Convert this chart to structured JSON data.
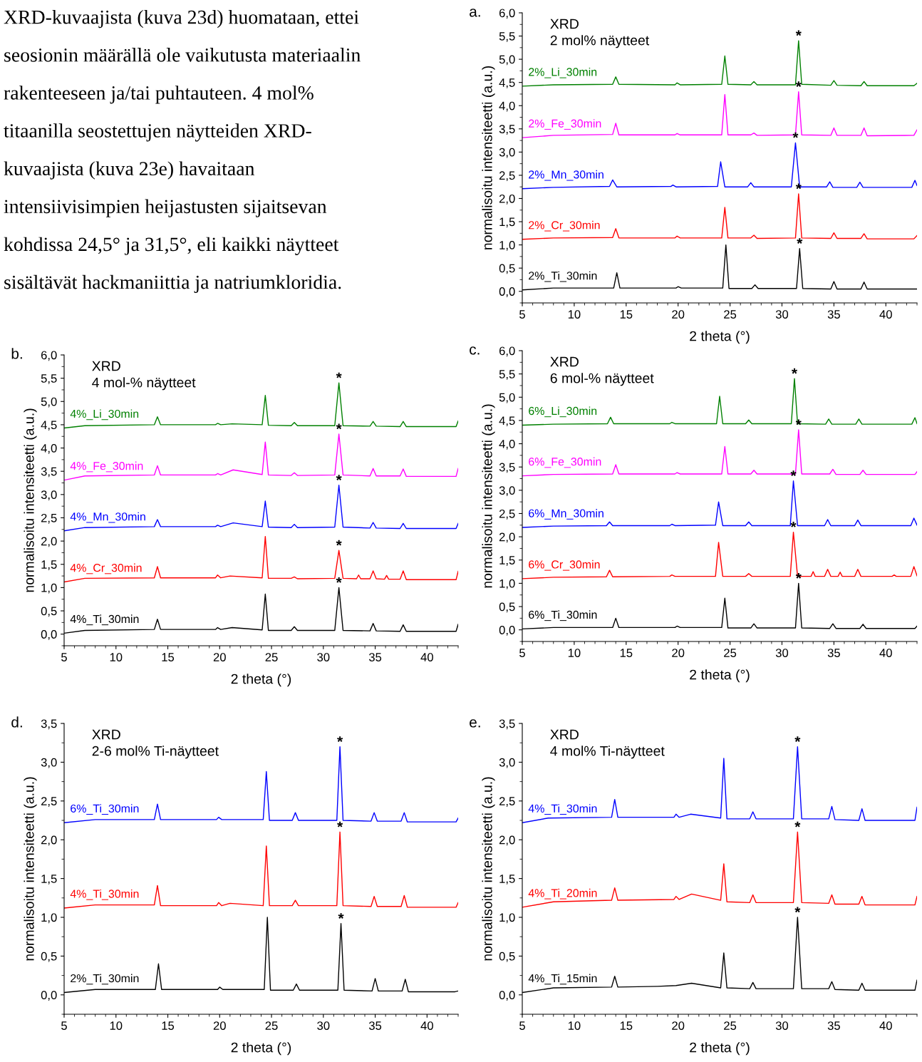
{
  "chart_data": [
    {
      "type": "other",
      "annotations": [
        "XRD-kuvaajista (kuva 23d) huomataan, ettei",
        "seosionin määrällä ole vaikutusta materiaalin",
        "rakenteeseen ja/tai puhtauteen. 4 mol%",
        "titaanilla seostettujen näytteiden XRD-",
        "kuvaajista (kuva 23e) havaitaan",
        "intensiivisimpien heijastusten sijaitsevan",
        "kohdissa 24,5° ja 31,5°, eli kaikki näytteet",
        "sisältävät hackmaniittia ja natriumkloridia."
      ]
    },
    {
      "type": "line",
      "title": "a.",
      "subtitle": "XRD\n2 mol% näytteet",
      "xlabel": "2 theta (°)",
      "ylabel": "normalisoitu intensiteetti (a.u.)",
      "xlim": [
        5,
        43
      ],
      "ylim": [
        -0.25,
        6.0
      ],
      "xticks": [
        5,
        10,
        15,
        20,
        25,
        30,
        35,
        40
      ],
      "yticks": [
        {
          "value": 0,
          "label": "0,0"
        },
        {
          "value": 0.5,
          "label": "0,5"
        },
        {
          "value": 1,
          "label": "1,0"
        },
        {
          "value": 1.5,
          "label": "1,5"
        },
        {
          "value": 2,
          "label": "2,0"
        },
        {
          "value": 2.5,
          "label": "2,5"
        },
        {
          "value": 3,
          "label": "3,0"
        },
        {
          "value": 3.5,
          "label": "3,5"
        },
        {
          "value": 4,
          "label": "4,0"
        },
        {
          "value": 4.5,
          "label": "4,5"
        },
        {
          "value": 5,
          "label": "5,0"
        },
        {
          "value": 5.5,
          "label": "5,5"
        },
        {
          "value": 6,
          "label": "6,0"
        }
      ],
      "grid": false,
      "legend": false,
      "marker": "none",
      "line_style": "solid",
      "series": [
        {
          "name": "2%_Li_30min",
          "color": "#008000",
          "x": [
            5,
            8,
            13.7,
            14.0,
            14.3,
            19.7,
            19.9,
            20.2,
            24.2,
            24.5,
            24.8,
            27.0,
            27.3,
            27.6,
            31.3,
            31.6,
            31.9,
            34.7,
            35.0,
            35.3,
            37.6,
            37.9,
            38.2,
            42.7,
            43
          ],
          "values": [
            4.42,
            4.45,
            4.46,
            4.62,
            4.46,
            4.45,
            4.49,
            4.45,
            4.46,
            5.07,
            4.46,
            4.45,
            4.52,
            4.45,
            4.45,
            5.4,
            4.46,
            4.44,
            4.54,
            4.44,
            4.43,
            4.52,
            4.43,
            4.43,
            4.48
          ]
        },
        {
          "name": "2%_Fe_30min",
          "color": "#ff00ff",
          "x": [
            5,
            8,
            13.7,
            14.0,
            14.3,
            19.7,
            19.9,
            20.2,
            24.2,
            24.5,
            24.8,
            27.0,
            27.3,
            27.6,
            31.3,
            31.6,
            31.9,
            34.7,
            35.0,
            35.3,
            37.6,
            37.9,
            38.2,
            42.7,
            43
          ],
          "values": [
            3.31,
            3.36,
            3.38,
            3.62,
            3.37,
            3.37,
            3.4,
            3.37,
            3.37,
            4.24,
            3.37,
            3.37,
            3.41,
            3.36,
            3.37,
            4.3,
            3.37,
            3.36,
            3.52,
            3.36,
            3.36,
            3.52,
            3.35,
            3.36,
            3.48
          ]
        },
        {
          "name": "2%_Mn_30min",
          "color": "#0000ff",
          "x": [
            5,
            8,
            13.4,
            13.7,
            14.1,
            19.3,
            19.5,
            19.8,
            23.8,
            24.1,
            24.5,
            26.7,
            27.0,
            27.3,
            30.9,
            31.3,
            31.7,
            34.3,
            34.6,
            34.9,
            37.2,
            37.5,
            37.8,
            42.5,
            42.8,
            43
          ],
          "values": [
            2.21,
            2.24,
            2.26,
            2.4,
            2.25,
            2.26,
            2.29,
            2.25,
            2.26,
            2.79,
            2.25,
            2.25,
            2.34,
            2.25,
            2.25,
            3.2,
            2.25,
            2.25,
            2.36,
            2.24,
            2.24,
            2.35,
            2.24,
            2.24,
            2.39,
            2.28
          ]
        },
        {
          "name": "2%_Cr_30min",
          "color": "#ff0000",
          "x": [
            5,
            8,
            13.7,
            14.0,
            14.3,
            19.7,
            19.9,
            20.2,
            24.2,
            24.5,
            24.8,
            27.0,
            27.3,
            27.6,
            31.3,
            31.6,
            31.9,
            34.7,
            35.0,
            35.3,
            37.6,
            37.9,
            38.2,
            42.7,
            43
          ],
          "values": [
            1.12,
            1.15,
            1.16,
            1.35,
            1.15,
            1.15,
            1.19,
            1.15,
            1.15,
            1.81,
            1.15,
            1.15,
            1.21,
            1.14,
            1.15,
            2.1,
            1.15,
            1.14,
            1.26,
            1.14,
            1.14,
            1.24,
            1.13,
            1.13,
            1.2
          ]
        },
        {
          "name": "2%_Ti_30min",
          "color": "#000000",
          "x": [
            5,
            8,
            13.8,
            14.1,
            14.4,
            19.8,
            20.0,
            20.3,
            24.3,
            24.6,
            24.9,
            27.1,
            27.4,
            27.7,
            31.4,
            31.7,
            32.0,
            34.7,
            35.0,
            35.3,
            37.6,
            37.9,
            38.2,
            42.7,
            43
          ],
          "values": [
            0.03,
            0.07,
            0.07,
            0.4,
            0.07,
            0.07,
            0.1,
            0.07,
            0.07,
            1.0,
            0.06,
            0.06,
            0.14,
            0.06,
            0.06,
            0.92,
            0.06,
            0.05,
            0.21,
            0.05,
            0.05,
            0.2,
            0.05,
            0.05,
            0.05
          ]
        }
      ],
      "annotations": [
        {
          "text": "*",
          "x": 31.6,
          "y": 5.4
        },
        {
          "text": "*",
          "x": 31.6,
          "y": 4.3
        },
        {
          "text": "*",
          "x": 31.3,
          "y": 3.2
        },
        {
          "text": "*",
          "x": 31.6,
          "y": 2.1
        },
        {
          "text": "*",
          "x": 31.7,
          "y": 0.92
        }
      ]
    },
    {
      "type": "line",
      "title": "b.",
      "subtitle": "XRD\n4 mol-% näytteet",
      "xlabel": "2 theta (°)",
      "ylabel": "normalisoitu intensiteetti (a.u.)",
      "xlim": [
        5,
        43
      ],
      "ylim": [
        -0.25,
        6.0
      ],
      "xticks": [
        5,
        10,
        15,
        20,
        25,
        30,
        35,
        40
      ],
      "yticks": [
        {
          "value": 0,
          "label": "0,0"
        },
        {
          "value": 0.5,
          "label": "0,5"
        },
        {
          "value": 1,
          "label": "1,0"
        },
        {
          "value": 1.5,
          "label": "1,5"
        },
        {
          "value": 2,
          "label": "2,0"
        },
        {
          "value": 2.5,
          "label": "2,5"
        },
        {
          "value": 3,
          "label": "3,0"
        },
        {
          "value": 3.5,
          "label": "3,5"
        },
        {
          "value": 4,
          "label": "4,0"
        },
        {
          "value": 4.5,
          "label": "4,5"
        },
        {
          "value": 5,
          "label": "5,0"
        },
        {
          "value": 5.5,
          "label": "5,5"
        },
        {
          "value": 6,
          "label": "6,0"
        }
      ],
      "grid": false,
      "legend": false,
      "marker": "none",
      "line_style": "solid",
      "series": [
        {
          "name": "4%_Li_30min",
          "color": "#008000",
          "x": [
            5,
            7,
            13.7,
            14.0,
            14.3,
            19.6,
            19.8,
            20.1,
            21.2,
            24.1,
            24.4,
            24.7,
            26.9,
            27.2,
            27.5,
            31.1,
            31.5,
            31.9,
            34.5,
            34.8,
            35.1,
            37.4,
            37.7,
            38.0,
            42.8,
            43
          ],
          "values": [
            4.43,
            4.48,
            4.5,
            4.67,
            4.5,
            4.5,
            4.53,
            4.5,
            4.52,
            4.5,
            5.13,
            4.49,
            4.48,
            4.55,
            4.48,
            4.48,
            5.4,
            4.48,
            4.47,
            4.57,
            4.47,
            4.46,
            4.57,
            4.46,
            4.46,
            4.58
          ]
        },
        {
          "name": "4%_Fe_30min",
          "color": "#ff00ff",
          "x": [
            5,
            7,
            13.7,
            14.0,
            14.3,
            19.6,
            19.8,
            20.1,
            21.3,
            24.1,
            24.4,
            24.7,
            26.9,
            27.2,
            27.5,
            31.1,
            31.5,
            31.9,
            34.5,
            34.8,
            35.1,
            37.4,
            37.7,
            38.0,
            42.8,
            43
          ],
          "values": [
            3.31,
            3.4,
            3.42,
            3.62,
            3.42,
            3.42,
            3.45,
            3.42,
            3.53,
            3.43,
            4.13,
            3.42,
            3.41,
            3.47,
            3.41,
            3.42,
            4.3,
            3.42,
            3.4,
            3.56,
            3.4,
            3.4,
            3.55,
            3.39,
            3.39,
            3.56
          ]
        },
        {
          "name": "4%_Mn_30min",
          "color": "#0000ff",
          "x": [
            5,
            7,
            13.7,
            14.0,
            14.3,
            19.6,
            19.8,
            20.1,
            21.3,
            24.1,
            24.4,
            24.7,
            26.9,
            27.2,
            27.5,
            31.1,
            31.5,
            31.9,
            34.5,
            34.8,
            35.1,
            37.4,
            37.7,
            38.0,
            42.8,
            43
          ],
          "values": [
            2.22,
            2.29,
            2.31,
            2.46,
            2.31,
            2.31,
            2.34,
            2.31,
            2.39,
            2.31,
            2.86,
            2.3,
            2.29,
            2.36,
            2.29,
            2.3,
            3.2,
            2.3,
            2.28,
            2.4,
            2.28,
            2.27,
            2.38,
            2.27,
            2.27,
            2.38
          ]
        },
        {
          "name": "4%_Cr_30min",
          "color": "#ff0000",
          "x": [
            5,
            7,
            13.7,
            14.0,
            14.3,
            19.6,
            19.8,
            20.1,
            21.0,
            24.1,
            24.4,
            24.7,
            26.9,
            27.2,
            27.5,
            31.1,
            31.5,
            31.9,
            33.2,
            33.4,
            33.6,
            34.5,
            34.8,
            35.1,
            35.9,
            36.1,
            36.3,
            37.4,
            37.7,
            38.0,
            42.8,
            43
          ],
          "values": [
            1.12,
            1.2,
            1.21,
            1.45,
            1.21,
            1.21,
            1.27,
            1.21,
            1.25,
            1.21,
            2.1,
            1.2,
            1.2,
            1.23,
            1.19,
            1.2,
            1.8,
            1.2,
            1.19,
            1.27,
            1.19,
            1.19,
            1.36,
            1.19,
            1.18,
            1.26,
            1.18,
            1.18,
            1.36,
            1.17,
            1.17,
            1.35
          ]
        },
        {
          "name": "4%_Ti_30min",
          "color": "#000000",
          "x": [
            5,
            7,
            13.7,
            14.0,
            14.3,
            19.6,
            19.8,
            20.1,
            21.2,
            24.1,
            24.4,
            24.7,
            26.9,
            27.2,
            27.5,
            31.1,
            31.5,
            31.9,
            34.5,
            34.8,
            35.1,
            37.4,
            37.7,
            38.0,
            42.8,
            43
          ],
          "values": [
            0.02,
            0.08,
            0.1,
            0.32,
            0.1,
            0.1,
            0.14,
            0.1,
            0.14,
            0.09,
            0.86,
            0.08,
            0.08,
            0.16,
            0.08,
            0.08,
            1.0,
            0.08,
            0.07,
            0.23,
            0.07,
            0.06,
            0.2,
            0.06,
            0.06,
            0.21
          ]
        }
      ],
      "annotations": [
        {
          "text": "*",
          "x": 31.5,
          "y": 5.4
        },
        {
          "text": "*",
          "x": 31.5,
          "y": 4.3
        },
        {
          "text": "*",
          "x": 31.5,
          "y": 3.2
        },
        {
          "text": "*",
          "x": 31.5,
          "y": 1.8
        },
        {
          "text": "*",
          "x": 31.5,
          "y": 1.0
        }
      ]
    },
    {
      "type": "line",
      "title": "c.",
      "subtitle": "XRD\n6 mol-% näytteet",
      "xlabel": "2 theta (°)",
      "ylabel": "normalisoitu intensiteetti (a.u.)",
      "xlim": [
        5,
        43
      ],
      "ylim": [
        -0.25,
        6.0
      ],
      "xticks": [
        5,
        10,
        15,
        20,
        25,
        30,
        35,
        40
      ],
      "yticks": [
        {
          "value": 0,
          "label": "0,0"
        },
        {
          "value": 0.5,
          "label": "0,5"
        },
        {
          "value": 1,
          "label": "1,0"
        },
        {
          "value": 1.5,
          "label": "1,5"
        },
        {
          "value": 2,
          "label": "2,0"
        },
        {
          "value": 2.5,
          "label": "2,5"
        },
        {
          "value": 3,
          "label": "3,0"
        },
        {
          "value": 3.5,
          "label": "3,5"
        },
        {
          "value": 4,
          "label": "4,0"
        },
        {
          "value": 4.5,
          "label": "4,5"
        },
        {
          "value": 5,
          "label": "5,0"
        },
        {
          "value": 5.5,
          "label": "5,5"
        },
        {
          "value": 6,
          "label": "6,0"
        }
      ],
      "grid": false,
      "legend": false,
      "marker": "none",
      "line_style": "solid",
      "series": [
        {
          "name": "6%_Li_30min",
          "color": "#008000",
          "x": [
            5,
            8,
            13.2,
            13.5,
            13.8,
            19.2,
            19.4,
            19.7,
            23.7,
            24.0,
            24.3,
            26.5,
            26.8,
            27.1,
            30.9,
            31.2,
            31.5,
            34.2,
            34.5,
            34.8,
            37.1,
            37.4,
            37.7,
            42.5,
            42.8,
            43
          ],
          "values": [
            4.4,
            4.42,
            4.43,
            4.57,
            4.43,
            4.43,
            4.46,
            4.43,
            4.43,
            5.02,
            4.43,
            4.43,
            4.51,
            4.43,
            4.43,
            5.4,
            4.43,
            4.42,
            4.53,
            4.42,
            4.42,
            4.53,
            4.42,
            4.42,
            4.56,
            4.43
          ]
        },
        {
          "name": "6%_Fe_30min",
          "color": "#ff00ff",
          "x": [
            5,
            8,
            13.7,
            14.0,
            14.3,
            19.7,
            19.9,
            20.2,
            24.2,
            24.5,
            24.8,
            27.0,
            27.3,
            27.6,
            31.3,
            31.6,
            31.9,
            34.6,
            34.9,
            35.2,
            37.5,
            37.8,
            38.1,
            42.8,
            43
          ],
          "values": [
            3.31,
            3.34,
            3.35,
            3.55,
            3.35,
            3.35,
            3.38,
            3.35,
            3.35,
            3.94,
            3.35,
            3.35,
            3.43,
            3.35,
            3.35,
            4.3,
            3.35,
            3.35,
            3.45,
            3.34,
            3.34,
            3.43,
            3.34,
            3.34,
            3.4
          ]
        },
        {
          "name": "6%_Mn_30min",
          "color": "#0000ff",
          "x": [
            5,
            8,
            13.1,
            13.4,
            13.7,
            19.2,
            19.4,
            19.7,
            23.6,
            23.9,
            24.3,
            26.5,
            26.8,
            27.1,
            30.8,
            31.1,
            31.5,
            34.1,
            34.4,
            34.7,
            37.0,
            37.3,
            37.6,
            42.4,
            42.7,
            43
          ],
          "values": [
            2.2,
            2.23,
            2.24,
            2.32,
            2.24,
            2.24,
            2.27,
            2.24,
            2.25,
            2.75,
            2.24,
            2.24,
            2.32,
            2.24,
            2.24,
            3.2,
            2.24,
            2.24,
            2.37,
            2.24,
            2.24,
            2.36,
            2.24,
            2.24,
            2.4,
            2.25
          ]
        },
        {
          "name": "6%_Cr_30min",
          "color": "#ff0000",
          "x": [
            5,
            8,
            13.1,
            13.4,
            13.7,
            19.2,
            19.4,
            19.7,
            23.6,
            23.9,
            24.3,
            26.5,
            26.8,
            27.1,
            30.8,
            31.1,
            31.5,
            32.8,
            33.0,
            33.2,
            34.1,
            34.4,
            34.7,
            35.4,
            35.6,
            35.8,
            37.0,
            37.3,
            37.6,
            40.6,
            40.8,
            41.0,
            42.4,
            42.7,
            43
          ],
          "values": [
            1.1,
            1.13,
            1.14,
            1.28,
            1.14,
            1.15,
            1.18,
            1.15,
            1.15,
            1.88,
            1.15,
            1.15,
            1.21,
            1.15,
            1.15,
            2.1,
            1.15,
            1.15,
            1.25,
            1.15,
            1.15,
            1.3,
            1.15,
            1.15,
            1.24,
            1.15,
            1.15,
            1.3,
            1.15,
            1.15,
            1.18,
            1.15,
            1.15,
            1.36,
            1.16
          ]
        },
        {
          "name": "6%_Ti_30min",
          "color": "#000000",
          "x": [
            5,
            8,
            13.7,
            14.0,
            14.3,
            19.7,
            19.9,
            20.2,
            24.2,
            24.5,
            24.8,
            27.0,
            27.3,
            27.6,
            31.3,
            31.6,
            31.9,
            34.6,
            34.9,
            35.2,
            37.5,
            37.8,
            38.1,
            42.8,
            43
          ],
          "values": [
            0.02,
            0.05,
            0.05,
            0.25,
            0.05,
            0.05,
            0.08,
            0.05,
            0.05,
            0.68,
            0.04,
            0.04,
            0.13,
            0.04,
            0.04,
            1.0,
            0.04,
            0.03,
            0.13,
            0.03,
            0.03,
            0.12,
            0.03,
            0.03,
            0.08
          ]
        }
      ],
      "annotations": [
        {
          "text": "*",
          "x": 31.2,
          "y": 5.4
        },
        {
          "text": "*",
          "x": 31.6,
          "y": 4.3
        },
        {
          "text": "*",
          "x": 31.1,
          "y": 3.2
        },
        {
          "text": "*",
          "x": 31.1,
          "y": 2.1
        },
        {
          "text": "*",
          "x": 31.6,
          "y": 1.0
        }
      ]
    },
    {
      "type": "line",
      "title": "d.",
      "subtitle": "XRD\n2-6 mol% Ti-näytteet",
      "xlabel": "2 theta (°)",
      "ylabel": "normalisoitu intensiteetti (a.u.)",
      "xlim": [
        5,
        43
      ],
      "ylim": [
        -0.25,
        3.5
      ],
      "xticks": [
        5,
        10,
        15,
        20,
        25,
        30,
        35,
        40
      ],
      "yticks": [
        {
          "value": 0,
          "label": "0,0"
        },
        {
          "value": 0.5,
          "label": "0,5"
        },
        {
          "value": 1,
          "label": "1,0"
        },
        {
          "value": 1.5,
          "label": "1,5"
        },
        {
          "value": 2,
          "label": "2,0"
        },
        {
          "value": 2.5,
          "label": "2,5"
        },
        {
          "value": 3,
          "label": "3,0"
        },
        {
          "value": 3.5,
          "label": "3,5"
        }
      ],
      "grid": false,
      "legend": false,
      "marker": "none",
      "line_style": "solid",
      "series": [
        {
          "name": "6%_Ti_30min",
          "color": "#0000ff",
          "x": [
            5,
            8,
            13.7,
            14.0,
            14.3,
            19.7,
            19.9,
            20.2,
            24.2,
            24.5,
            24.8,
            27.0,
            27.3,
            27.6,
            31.3,
            31.6,
            31.9,
            34.6,
            34.9,
            35.2,
            37.5,
            37.8,
            38.1,
            42.8,
            43
          ],
          "values": [
            2.22,
            2.26,
            2.26,
            2.46,
            2.26,
            2.26,
            2.29,
            2.26,
            2.26,
            2.88,
            2.25,
            2.25,
            2.35,
            2.25,
            2.25,
            3.2,
            2.25,
            2.24,
            2.35,
            2.24,
            2.24,
            2.35,
            2.23,
            2.23,
            2.28
          ]
        },
        {
          "name": "4%_Ti_30min",
          "color": "#ff0000",
          "x": [
            5,
            8,
            13.7,
            14.0,
            14.3,
            19.7,
            19.9,
            20.2,
            21.0,
            24.2,
            24.5,
            24.8,
            27.0,
            27.3,
            27.6,
            31.3,
            31.6,
            31.9,
            34.6,
            34.9,
            35.2,
            37.5,
            37.8,
            38.1,
            42.8,
            43
          ],
          "values": [
            1.12,
            1.16,
            1.16,
            1.41,
            1.15,
            1.15,
            1.19,
            1.15,
            1.18,
            1.15,
            1.92,
            1.15,
            1.15,
            1.22,
            1.15,
            1.15,
            2.1,
            1.15,
            1.14,
            1.27,
            1.14,
            1.14,
            1.28,
            1.13,
            1.13,
            1.19
          ]
        },
        {
          "name": "2%_Ti_30min",
          "color": "#000000",
          "x": [
            5,
            8,
            13.8,
            14.1,
            14.4,
            19.8,
            20.0,
            20.3,
            24.3,
            24.6,
            24.9,
            27.1,
            27.4,
            27.7,
            31.4,
            31.7,
            32.0,
            34.7,
            35.0,
            35.3,
            37.6,
            37.9,
            38.2,
            42.7,
            43
          ],
          "values": [
            0.03,
            0.07,
            0.07,
            0.4,
            0.07,
            0.07,
            0.1,
            0.07,
            0.07,
            1.0,
            0.06,
            0.06,
            0.14,
            0.06,
            0.06,
            0.92,
            0.06,
            0.05,
            0.21,
            0.05,
            0.05,
            0.2,
            0.04,
            0.04,
            0.05
          ]
        }
      ],
      "annotations": [
        {
          "text": "*",
          "x": 31.6,
          "y": 3.2
        },
        {
          "text": "*",
          "x": 31.6,
          "y": 2.1
        },
        {
          "text": "*",
          "x": 31.7,
          "y": 0.92
        }
      ]
    },
    {
      "type": "line",
      "title": "e.",
      "subtitle": "XRD\n4 mol% Ti-näytteet",
      "xlabel": "2 theta (°)",
      "ylabel": "normalisoitu intensiteetti (a.u.)",
      "xlim": [
        5,
        43
      ],
      "ylim": [
        -0.25,
        3.5
      ],
      "xticks": [
        5,
        10,
        15,
        20,
        25,
        30,
        35,
        40
      ],
      "yticks": [
        {
          "value": 0,
          "label": "0,0"
        },
        {
          "value": 0.5,
          "label": "0,5"
        },
        {
          "value": 1,
          "label": "1,0"
        },
        {
          "value": 1.5,
          "label": "1,5"
        },
        {
          "value": 2,
          "label": "2,0"
        },
        {
          "value": 2.5,
          "label": "2,5"
        },
        {
          "value": 3,
          "label": "3,0"
        },
        {
          "value": 3.5,
          "label": "3,5"
        }
      ],
      "grid": false,
      "legend": false,
      "marker": "none",
      "line_style": "solid",
      "series": [
        {
          "name": "4%_Ti_30min",
          "color": "#0000ff",
          "x": [
            5,
            7.5,
            13.6,
            13.9,
            14.2,
            19.6,
            19.8,
            20.1,
            21.2,
            24.1,
            24.4,
            24.7,
            26.9,
            27.2,
            27.5,
            31.1,
            31.5,
            31.9,
            34.5,
            34.8,
            35.1,
            37.4,
            37.7,
            38.0,
            42.8,
            43
          ],
          "values": [
            2.22,
            2.28,
            2.29,
            2.52,
            2.29,
            2.29,
            2.33,
            2.29,
            2.33,
            2.28,
            3.05,
            2.27,
            2.27,
            2.36,
            2.27,
            2.27,
            3.2,
            2.27,
            2.27,
            2.43,
            2.26,
            2.25,
            2.4,
            2.25,
            2.25,
            2.42
          ]
        },
        {
          "name": "4%_Ti_20min",
          "color": "#ff0000",
          "x": [
            5,
            8,
            13.6,
            13.9,
            14.2,
            19.6,
            19.8,
            20.1,
            21.3,
            24.1,
            24.4,
            24.7,
            26.9,
            27.2,
            27.5,
            31.1,
            31.5,
            31.9,
            34.5,
            34.8,
            35.1,
            37.4,
            37.7,
            38.0,
            42.8,
            43
          ],
          "values": [
            1.13,
            1.2,
            1.22,
            1.38,
            1.22,
            1.23,
            1.27,
            1.23,
            1.3,
            1.22,
            1.69,
            1.2,
            1.19,
            1.29,
            1.19,
            1.19,
            2.1,
            1.19,
            1.18,
            1.29,
            1.17,
            1.17,
            1.27,
            1.16,
            1.16,
            1.27
          ]
        },
        {
          "name": "4%_Ti_15min",
          "color": "#000000",
          "x": [
            5,
            8,
            13.6,
            13.9,
            14.2,
            18.0,
            19.8,
            21.3,
            24.1,
            24.4,
            24.7,
            26.9,
            27.2,
            27.5,
            31.1,
            31.5,
            31.9,
            34.5,
            34.8,
            35.1,
            37.4,
            37.7,
            38.0,
            42.8,
            43
          ],
          "values": [
            0.03,
            0.09,
            0.1,
            0.24,
            0.1,
            0.11,
            0.12,
            0.15,
            0.09,
            0.54,
            0.09,
            0.08,
            0.16,
            0.08,
            0.08,
            1.0,
            0.08,
            0.08,
            0.17,
            0.07,
            0.06,
            0.15,
            0.06,
            0.06,
            0.19
          ]
        }
      ],
      "annotations": [
        {
          "text": "*",
          "x": 31.5,
          "y": 3.2
        },
        {
          "text": "*",
          "x": 31.5,
          "y": 2.1
        },
        {
          "text": "*",
          "x": 31.5,
          "y": 1.0
        }
      ]
    }
  ]
}
